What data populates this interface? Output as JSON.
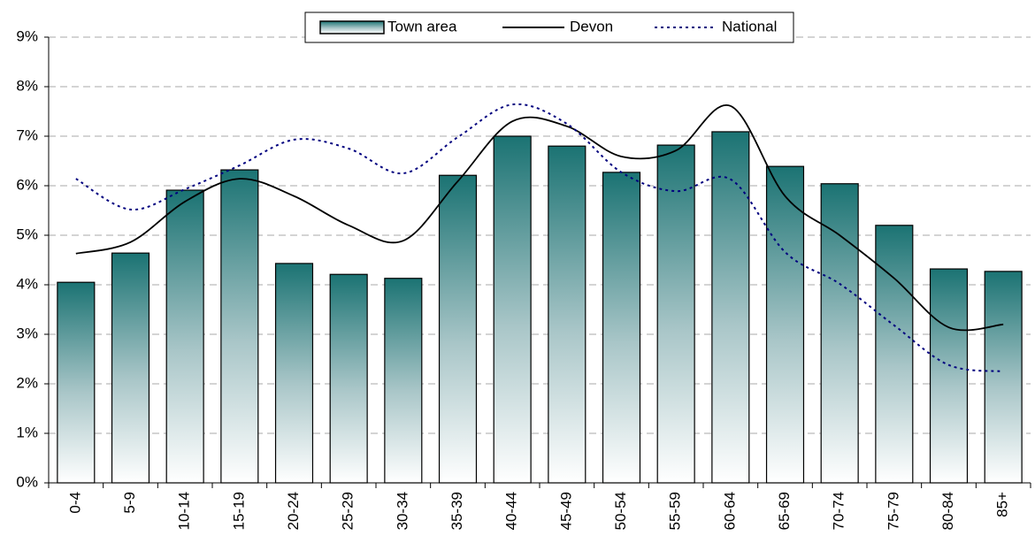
{
  "chart_data": {
    "type": "bar_line",
    "categories": [
      "0-4",
      "5-9",
      "10-14",
      "15-19",
      "20-24",
      "25-29",
      "30-34",
      "35-39",
      "40-44",
      "45-49",
      "50-54",
      "55-59",
      "60-64",
      "65-69",
      "70-74",
      "75-79",
      "80-84",
      "85+"
    ],
    "series": [
      {
        "name": "Town area",
        "type": "bar",
        "color": "#1b7373",
        "values": [
          4.05,
          4.64,
          5.91,
          6.32,
          4.43,
          4.21,
          4.13,
          6.21,
          7.0,
          6.8,
          6.27,
          6.82,
          7.09,
          6.39,
          6.04,
          5.2,
          4.32,
          4.27
        ]
      },
      {
        "name": "Devon",
        "type": "line",
        "color": "#000000",
        "values": [
          4.63,
          4.86,
          5.68,
          6.14,
          5.79,
          5.2,
          4.89,
          6.09,
          7.3,
          7.2,
          6.59,
          6.71,
          7.61,
          5.79,
          5.0,
          4.13,
          3.14,
          3.2
        ]
      },
      {
        "name": "National",
        "type": "line",
        "dashed": true,
        "color": "#00007f",
        "values": [
          6.14,
          5.52,
          5.93,
          6.41,
          6.93,
          6.75,
          6.25,
          6.98,
          7.64,
          7.25,
          6.27,
          5.89,
          6.13,
          4.66,
          4.02,
          3.18,
          2.38,
          2.25
        ]
      }
    ],
    "ylim": [
      0,
      9
    ],
    "yticks": [
      {
        "value": 0,
        "label": "0%"
      },
      {
        "value": 1,
        "label": "1%"
      },
      {
        "value": 2,
        "label": "2%"
      },
      {
        "value": 3,
        "label": "3%"
      },
      {
        "value": 4,
        "label": "4%"
      },
      {
        "value": 5,
        "label": "5%"
      },
      {
        "value": 6,
        "label": "6%"
      },
      {
        "value": 7,
        "label": "7%"
      },
      {
        "value": 8,
        "label": "8%"
      },
      {
        "value": 9,
        "label": "9%"
      }
    ],
    "grid": true,
    "legend": "top"
  }
}
